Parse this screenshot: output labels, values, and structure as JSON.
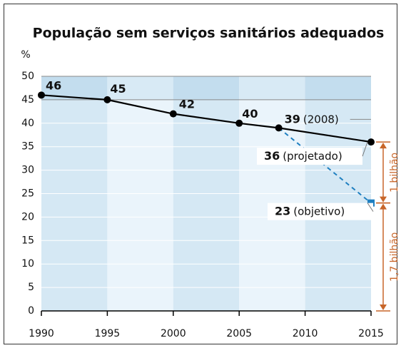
{
  "chart_data": {
    "type": "line",
    "title": "População sem serviços sanitários adequados",
    "y_label": "%",
    "xlim": [
      1990,
      2015
    ],
    "xticks": [
      1990,
      1995,
      2000,
      2005,
      2010,
      2015
    ],
    "ylim": [
      0,
      50
    ],
    "yticks": [
      0,
      5,
      10,
      15,
      20,
      25,
      30,
      35,
      40,
      45,
      50
    ],
    "grid": true,
    "series": [
      {
        "color": "#000000",
        "dashed": false,
        "marker": "circle",
        "x": [
          1990,
          1995,
          2000,
          2005,
          2008,
          2015
        ],
        "values": [
          46,
          45,
          42,
          40,
          39,
          36
        ],
        "notes": [
          null,
          null,
          null,
          null,
          "(2008)",
          "(projetado)"
        ]
      },
      {
        "color": "#1f7fc0",
        "dashed": true,
        "marker": "square",
        "x": [
          2008,
          2015
        ],
        "values": [
          39,
          23
        ],
        "notes": [
          null,
          "(objetivo)"
        ]
      }
    ],
    "brackets": [
      {
        "label": "1 bilhão",
        "color": "#c8662a"
      },
      {
        "label": "1,7 bilhão",
        "color": "#c8662a"
      }
    ]
  }
}
